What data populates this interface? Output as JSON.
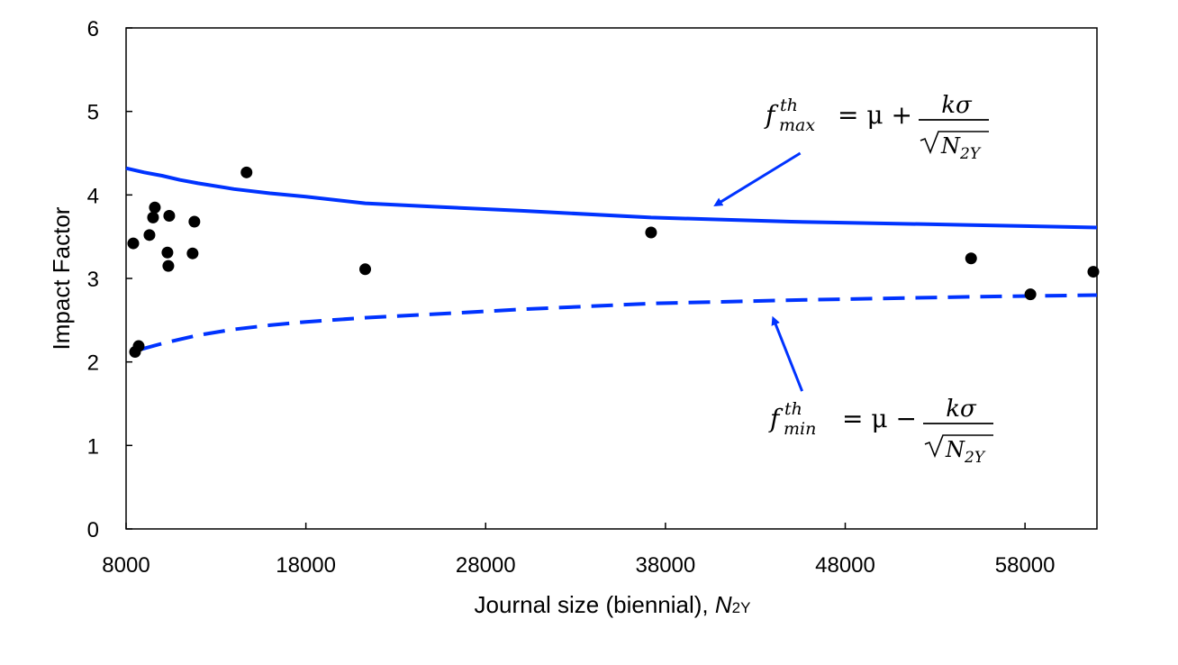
{
  "chart_data": {
    "type": "scatter",
    "title": "",
    "xlabel": "Journal size (biennial), ",
    "xlabel_var": "N",
    "xlabel_sub": "2Y",
    "ylabel": "Impact Factor",
    "xlim": [
      8000,
      62000
    ],
    "ylim": [
      0,
      6
    ],
    "x_ticks": [
      8000,
      18000,
      28000,
      38000,
      48000,
      58000
    ],
    "y_ticks": [
      0,
      1,
      2,
      3,
      4,
      5,
      6
    ],
    "x_tick_labels": [
      "8000",
      "18000",
      "28000",
      "38000",
      "48000",
      "58000"
    ],
    "y_tick_labels": [
      "0",
      "1",
      "2",
      "3",
      "4",
      "5",
      "6"
    ],
    "grid": false,
    "colors": {
      "points": "#000000",
      "threshold": "#0033ff"
    },
    "points": [
      {
        "x": 8400,
        "y": 3.42
      },
      {
        "x": 8500,
        "y": 2.12
      },
      {
        "x": 8700,
        "y": 2.19
      },
      {
        "x": 9300,
        "y": 3.52
      },
      {
        "x": 9500,
        "y": 3.73
      },
      {
        "x": 9600,
        "y": 3.85
      },
      {
        "x": 10300,
        "y": 3.31
      },
      {
        "x": 10350,
        "y": 3.15
      },
      {
        "x": 10400,
        "y": 3.75
      },
      {
        "x": 11700,
        "y": 3.3
      },
      {
        "x": 11800,
        "y": 3.68
      },
      {
        "x": 14700,
        "y": 4.27
      },
      {
        "x": 21300,
        "y": 3.11
      },
      {
        "x": 37200,
        "y": 3.55
      },
      {
        "x": 55000,
        "y": 3.24
      },
      {
        "x": 58300,
        "y": 2.81
      },
      {
        "x": 61800,
        "y": 3.08
      }
    ],
    "series": [
      {
        "name": "f_max threshold",
        "style": "solid",
        "x": [
          8000,
          9000,
          10000,
          11000,
          12000,
          14000,
          16000,
          18000,
          21300,
          25000,
          30000,
          37200,
          45000,
          55000,
          62000
        ],
        "y": [
          4.32,
          4.27,
          4.23,
          4.18,
          4.14,
          4.07,
          4.02,
          3.98,
          3.9,
          3.86,
          3.81,
          3.73,
          3.68,
          3.64,
          3.61
        ]
      },
      {
        "name": "f_min threshold",
        "style": "dashed",
        "x": [
          8800,
          10000,
          11000,
          12000,
          14000,
          16000,
          18000,
          21300,
          25000,
          30000,
          37200,
          45000,
          55000,
          62000
        ],
        "y": [
          2.15,
          2.22,
          2.27,
          2.32,
          2.39,
          2.44,
          2.48,
          2.53,
          2.57,
          2.63,
          2.7,
          2.74,
          2.78,
          2.8
        ]
      }
    ],
    "annotations": [
      {
        "id": "max",
        "f": "f",
        "sup": "th",
        "sub": "max",
        "eq": "= μ +",
        "numerator": "kσ",
        "den_var": "N",
        "den_sub": "2Y",
        "arrow_from": {
          "x": 45500,
          "y": 4.5
        },
        "arrow_to": {
          "x": 40800,
          "y": 3.88
        }
      },
      {
        "id": "min",
        "f": "f",
        "sup": "th",
        "sub": "min",
        "eq": "= μ −",
        "numerator": "kσ",
        "den_var": "N",
        "den_sub": "2Y",
        "arrow_from": {
          "x": 45600,
          "y": 1.65
        },
        "arrow_to": {
          "x": 44000,
          "y": 2.52
        }
      }
    ]
  }
}
